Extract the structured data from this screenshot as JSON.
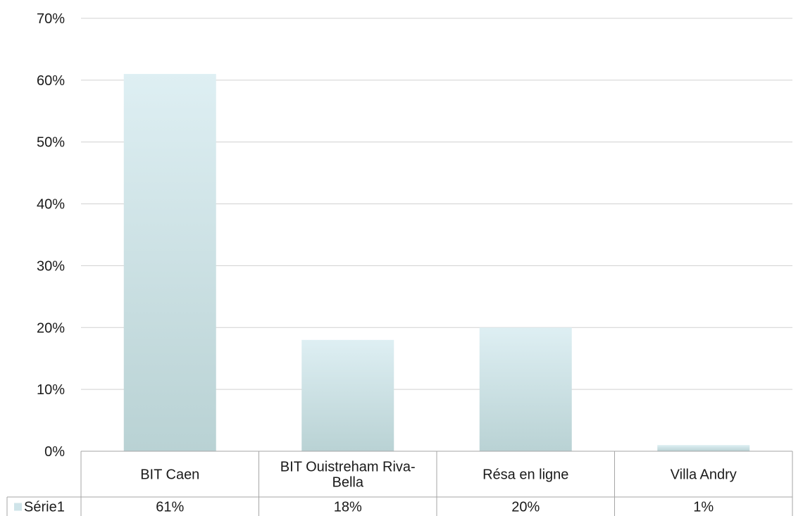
{
  "chart_data": {
    "type": "bar",
    "title": "",
    "xlabel": "",
    "ylabel": "",
    "categories": [
      "BIT Caen",
      "BIT Ouistreham Riva-Bella",
      "Résa en ligne",
      "Villa Andry"
    ],
    "category_lines": [
      [
        "BIT Caen"
      ],
      [
        "BIT Ouistreham Riva-",
        "Bella"
      ],
      [
        "Résa en ligne"
      ],
      [
        "Villa Andry"
      ]
    ],
    "series": [
      {
        "name": "Série1",
        "values": [
          61,
          18,
          20,
          1
        ],
        "value_labels": [
          "61%",
          "18%",
          "20%",
          "1%"
        ]
      }
    ],
    "ylim": [
      0,
      70
    ],
    "yticks": [
      0,
      10,
      20,
      30,
      40,
      50,
      60,
      70
    ],
    "ytick_labels": [
      "0%",
      "10%",
      "20%",
      "30%",
      "40%",
      "50%",
      "60%",
      "70%"
    ],
    "grid": true,
    "legend": "data-table",
    "colors": {
      "bar_top": "#deeff3",
      "bar_bottom": "#b9d2d4",
      "grid": "#d0d0d0",
      "table_border": "#a6a6a6",
      "legend_key": "#cfe4e9"
    }
  }
}
